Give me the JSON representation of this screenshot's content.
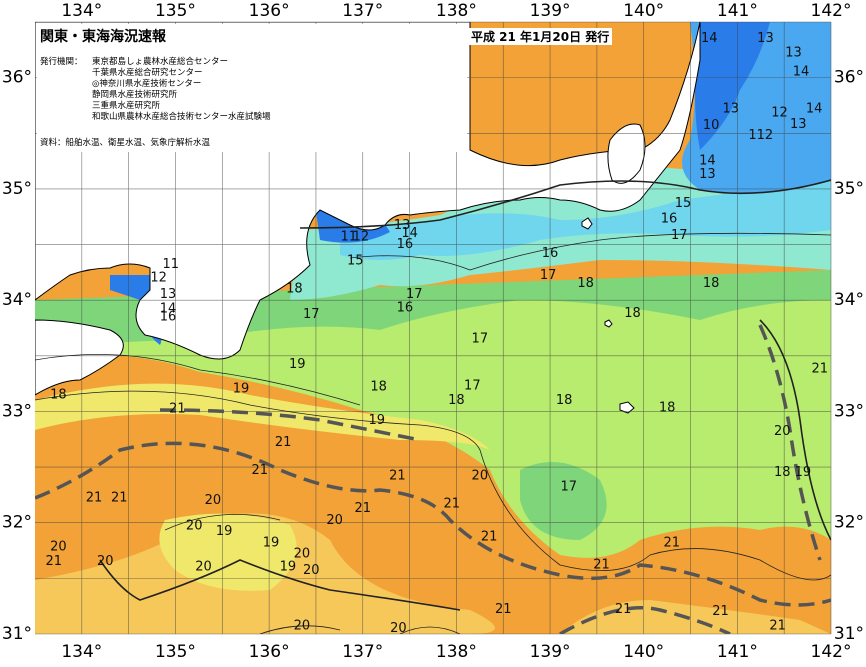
{
  "header": {
    "title": "関東・東海海況速報",
    "date": "平成 21 年1月20日 発行"
  },
  "issuers": {
    "label": "発行機関：",
    "list": [
      "東京都島しょ農林水産総合センター",
      "千葉県水産総合研究センター",
      "◎神奈川県水産技術センター",
      "静岡県水産技術研究所",
      "三重県水産研究所",
      "和歌山県農林水産総合技術センター水産試験場"
    ]
  },
  "source": "資料：船舶水温、衛星水温、気象庁解析水温",
  "axes": {
    "lon_labels_top": [
      "134°",
      "135°",
      "136°",
      "137°",
      "138°",
      "139°",
      "140°",
      "141°",
      "142°"
    ],
    "lon_labels_bottom": [
      "134°",
      "135°",
      "136°",
      "137°",
      "138°",
      "139°",
      "140°",
      "141°",
      "142°"
    ],
    "lat_labels_left": [
      "36°",
      "35°",
      "34°",
      "33°",
      "32°",
      "31°"
    ],
    "lat_labels_right": [
      "36°",
      "35°",
      "34°",
      "33°",
      "32°",
      "31°"
    ],
    "lon_range": [
      133.5,
      142
    ],
    "lat_range": [
      31,
      36.5
    ]
  },
  "colors": {
    "land": "#ffffff",
    "deep_blue": "#2a7de8",
    "blue": "#4aa8f0",
    "cyan": "#6fd6ee",
    "teal": "#8fe8d0",
    "green": "#7fd67a",
    "light_green": "#b8ec6e",
    "yellow": "#f0e86a",
    "pale_orange": "#f6c85a",
    "orange": "#f2a236",
    "kuroshio_axis": "#555555"
  },
  "isotherms": [
    {
      "label": "14",
      "lon": 140.7,
      "lat": 36.35
    },
    {
      "label": "13",
      "lon": 141.3,
      "lat": 36.35
    },
    {
      "label": "13",
      "lon": 141.6,
      "lat": 36.22
    },
    {
      "label": "14",
      "lon": 141.68,
      "lat": 36.05
    },
    {
      "label": "13",
      "lon": 140.93,
      "lat": 35.72
    },
    {
      "label": "12",
      "lon": 141.45,
      "lat": 35.68
    },
    {
      "label": "14",
      "lon": 141.82,
      "lat": 35.72
    },
    {
      "label": "13",
      "lon": 141.65,
      "lat": 35.58
    },
    {
      "label": "10",
      "lon": 140.72,
      "lat": 35.57
    },
    {
      "label": "112",
      "lon": 141.25,
      "lat": 35.48
    },
    {
      "label": "14",
      "lon": 140.68,
      "lat": 35.25
    },
    {
      "label": "13",
      "lon": 140.68,
      "lat": 35.13
    },
    {
      "label": "15",
      "lon": 140.42,
      "lat": 34.87
    },
    {
      "label": "16",
      "lon": 140.27,
      "lat": 34.73
    },
    {
      "label": "17",
      "lon": 140.38,
      "lat": 34.58
    },
    {
      "label": "13",
      "lon": 137.42,
      "lat": 34.67
    },
    {
      "label": "14",
      "lon": 137.5,
      "lat": 34.6
    },
    {
      "label": "11",
      "lon": 136.85,
      "lat": 34.57
    },
    {
      "label": "12",
      "lon": 136.98,
      "lat": 34.57
    },
    {
      "label": "16",
      "lon": 137.45,
      "lat": 34.5
    },
    {
      "label": "15",
      "lon": 136.92,
      "lat": 34.35
    },
    {
      "label": "16",
      "lon": 139.0,
      "lat": 34.42
    },
    {
      "label": "17",
      "lon": 138.98,
      "lat": 34.22
    },
    {
      "label": "18",
      "lon": 139.38,
      "lat": 34.15
    },
    {
      "label": "18",
      "lon": 140.72,
      "lat": 34.15
    },
    {
      "label": "11",
      "lon": 134.95,
      "lat": 34.32
    },
    {
      "label": "12",
      "lon": 134.82,
      "lat": 34.2
    },
    {
      "label": "13",
      "lon": 134.92,
      "lat": 34.05
    },
    {
      "label": "14",
      "lon": 134.92,
      "lat": 33.92
    },
    {
      "label": "16",
      "lon": 134.92,
      "lat": 33.85
    },
    {
      "label": "18",
      "lon": 136.27,
      "lat": 34.1
    },
    {
      "label": "17",
      "lon": 137.55,
      "lat": 34.05
    },
    {
      "label": "16",
      "lon": 137.45,
      "lat": 33.93
    },
    {
      "label": "17",
      "lon": 136.45,
      "lat": 33.87
    },
    {
      "label": "18",
      "lon": 139.88,
      "lat": 33.88
    },
    {
      "label": "17",
      "lon": 138.25,
      "lat": 33.65
    },
    {
      "label": "19",
      "lon": 136.3,
      "lat": 33.42
    },
    {
      "label": "19",
      "lon": 135.7,
      "lat": 33.2
    },
    {
      "label": "18",
      "lon": 137.17,
      "lat": 33.22
    },
    {
      "label": "17",
      "lon": 138.17,
      "lat": 33.23
    },
    {
      "label": "18",
      "lon": 138.0,
      "lat": 33.1
    },
    {
      "label": "18",
      "lon": 139.15,
      "lat": 33.1
    },
    {
      "label": "18",
      "lon": 140.25,
      "lat": 33.03
    },
    {
      "label": "18",
      "lon": 133.75,
      "lat": 33.15
    },
    {
      "label": "21",
      "lon": 141.88,
      "lat": 33.38
    },
    {
      "label": "21",
      "lon": 135.02,
      "lat": 33.02
    },
    {
      "label": "19",
      "lon": 137.15,
      "lat": 32.92
    },
    {
      "label": "20",
      "lon": 141.48,
      "lat": 32.82
    },
    {
      "label": "21",
      "lon": 136.15,
      "lat": 32.72
    },
    {
      "label": "21",
      "lon": 135.9,
      "lat": 32.47
    },
    {
      "label": "21",
      "lon": 137.37,
      "lat": 32.42
    },
    {
      "label": "20",
      "lon": 138.25,
      "lat": 32.42
    },
    {
      "label": "18",
      "lon": 141.48,
      "lat": 32.45
    },
    {
      "label": "19",
      "lon": 141.7,
      "lat": 32.45
    },
    {
      "label": "17",
      "lon": 139.2,
      "lat": 32.32
    },
    {
      "label": "21",
      "lon": 134.13,
      "lat": 32.22
    },
    {
      "label": "21",
      "lon": 134.4,
      "lat": 32.22
    },
    {
      "label": "20",
      "lon": 135.4,
      "lat": 32.2
    },
    {
      "label": "21",
      "lon": 137.0,
      "lat": 32.13
    },
    {
      "label": "21",
      "lon": 137.95,
      "lat": 32.17
    },
    {
      "label": "20",
      "lon": 135.2,
      "lat": 31.97
    },
    {
      "label": "20",
      "lon": 136.7,
      "lat": 32.02
    },
    {
      "label": "19",
      "lon": 135.52,
      "lat": 31.92
    },
    {
      "label": "19",
      "lon": 136.02,
      "lat": 31.82
    },
    {
      "label": "21",
      "lon": 138.35,
      "lat": 31.87
    },
    {
      "label": "21",
      "lon": 140.3,
      "lat": 31.82
    },
    {
      "label": "20",
      "lon": 133.75,
      "lat": 31.78
    },
    {
      "label": "21",
      "lon": 133.7,
      "lat": 31.65
    },
    {
      "label": "20",
      "lon": 134.25,
      "lat": 31.65
    },
    {
      "label": "20",
      "lon": 135.3,
      "lat": 31.6
    },
    {
      "label": "20",
      "lon": 136.35,
      "lat": 31.72
    },
    {
      "label": "19",
      "lon": 136.2,
      "lat": 31.6
    },
    {
      "label": "20",
      "lon": 136.45,
      "lat": 31.57
    },
    {
      "label": "21",
      "lon": 139.55,
      "lat": 31.62
    },
    {
      "label": "21",
      "lon": 138.5,
      "lat": 31.22
    },
    {
      "label": "21",
      "lon": 139.78,
      "lat": 31.22
    },
    {
      "label": "21",
      "lon": 140.82,
      "lat": 31.2
    },
    {
      "label": "20",
      "lon": 136.35,
      "lat": 31.07
    },
    {
      "label": "20",
      "lon": 137.38,
      "lat": 31.05
    },
    {
      "label": "21",
      "lon": 141.43,
      "lat": 31.07
    }
  ]
}
